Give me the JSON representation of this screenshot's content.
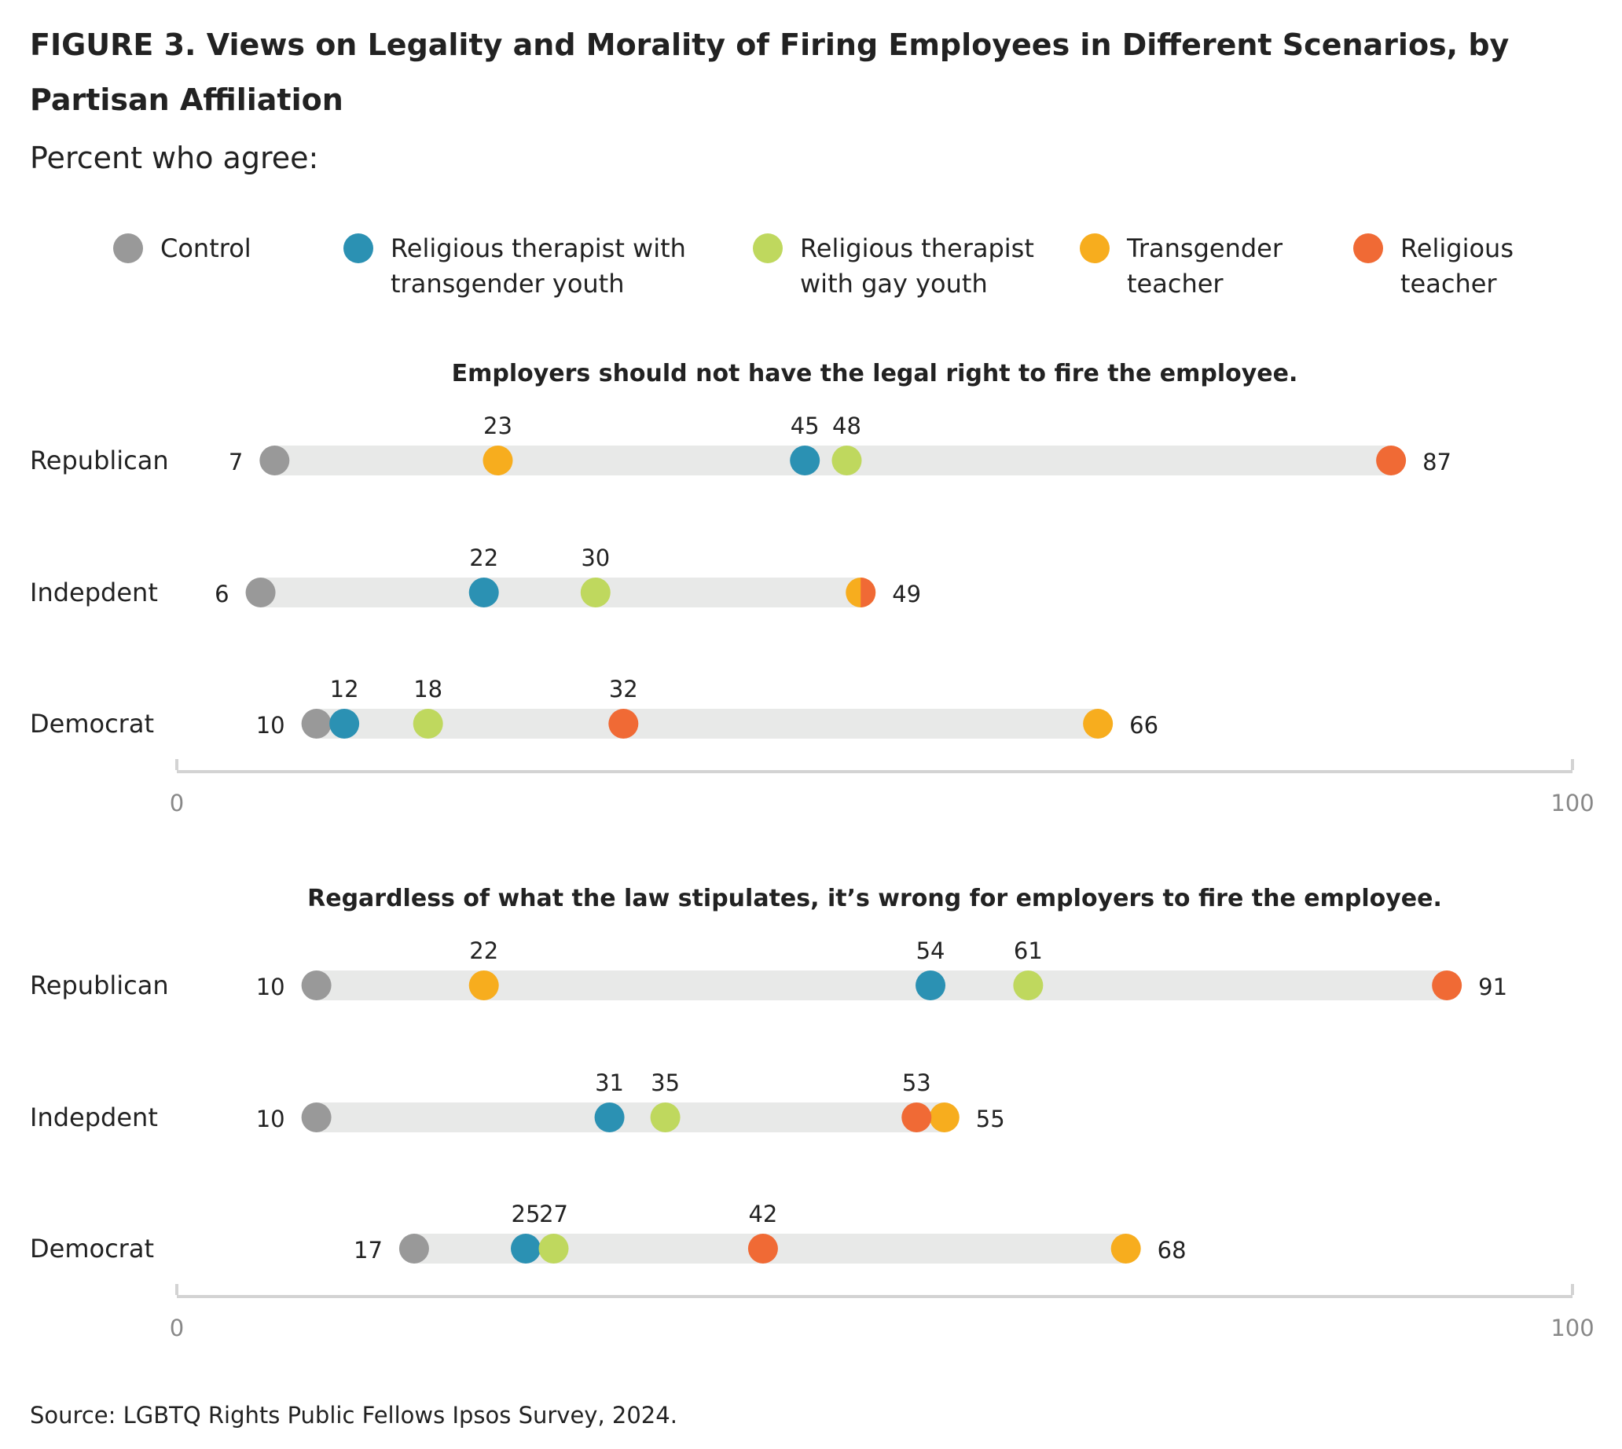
{
  "figure": {
    "title_line1": "FIGURE 3.  Views on Legality and Morality of Firing Employees in Different Scenarios, by",
    "title_line2": "Partisan Affiliation",
    "subtitle": "Percent who agree:",
    "source": "Source: LGBTQ Rights Public Fellows Ipsos Survey, 2024."
  },
  "legend": [
    {
      "key": "control",
      "line1": "Control",
      "line2": "",
      "color": "#999999"
    },
    {
      "key": "ther_trans",
      "line1": "Religious therapist with",
      "line2": "transgender youth",
      "color": "#2B91B3"
    },
    {
      "key": "ther_gay",
      "line1": "Religious therapist",
      "line2": "with gay youth",
      "color": "#BFD85E"
    },
    {
      "key": "trans_teacher",
      "line1": "Transgender",
      "line2": "teacher",
      "color": "#F7AD1E"
    },
    {
      "key": "rel_teacher",
      "line1": "Religious",
      "line2": "teacher",
      "color": "#F06A35"
    }
  ],
  "chart_data": [
    {
      "type": "dot",
      "title": "Employers should not have the legal right to fire the employee.",
      "xlim": [
        0,
        100
      ],
      "x_ticks": [
        "0",
        "100"
      ],
      "series_names": [
        "Control",
        "Religious therapist with transgender youth",
        "Religious therapist with gay youth",
        "Transgender teacher",
        "Religious teacher"
      ],
      "rows": [
        {
          "label": "Republican",
          "values": {
            "control": 7,
            "ther_trans": 45,
            "ther_gay": 48,
            "trans_teacher": 23,
            "rel_teacher": 87
          }
        },
        {
          "label": "Indepdent",
          "values": {
            "control": 6,
            "ther_trans": 22,
            "ther_gay": 30,
            "trans_teacher": 49,
            "rel_teacher": 49
          }
        },
        {
          "label": "Democrat",
          "values": {
            "control": 10,
            "ther_trans": 12,
            "ther_gay": 18,
            "trans_teacher": 66,
            "rel_teacher": 32
          }
        }
      ]
    },
    {
      "type": "dot",
      "title": "Regardless of what the law stipulates, it’s wrong for employers to fire the employee.",
      "xlim": [
        0,
        100
      ],
      "x_ticks": [
        "0",
        "100"
      ],
      "series_names": [
        "Control",
        "Religious therapist with transgender youth",
        "Religious therapist with gay youth",
        "Transgender teacher",
        "Religious teacher"
      ],
      "rows": [
        {
          "label": "Republican",
          "values": {
            "control": 10,
            "ther_trans": 54,
            "ther_gay": 61,
            "trans_teacher": 22,
            "rel_teacher": 91
          }
        },
        {
          "label": "Indepdent",
          "values": {
            "control": 10,
            "ther_trans": 31,
            "ther_gay": 35,
            "trans_teacher": 55,
            "rel_teacher": 53
          }
        },
        {
          "label": "Democrat",
          "values": {
            "control": 17,
            "ther_trans": 25,
            "ther_gay": 27,
            "trans_teacher": 68,
            "rel_teacher": 42
          }
        }
      ]
    }
  ]
}
